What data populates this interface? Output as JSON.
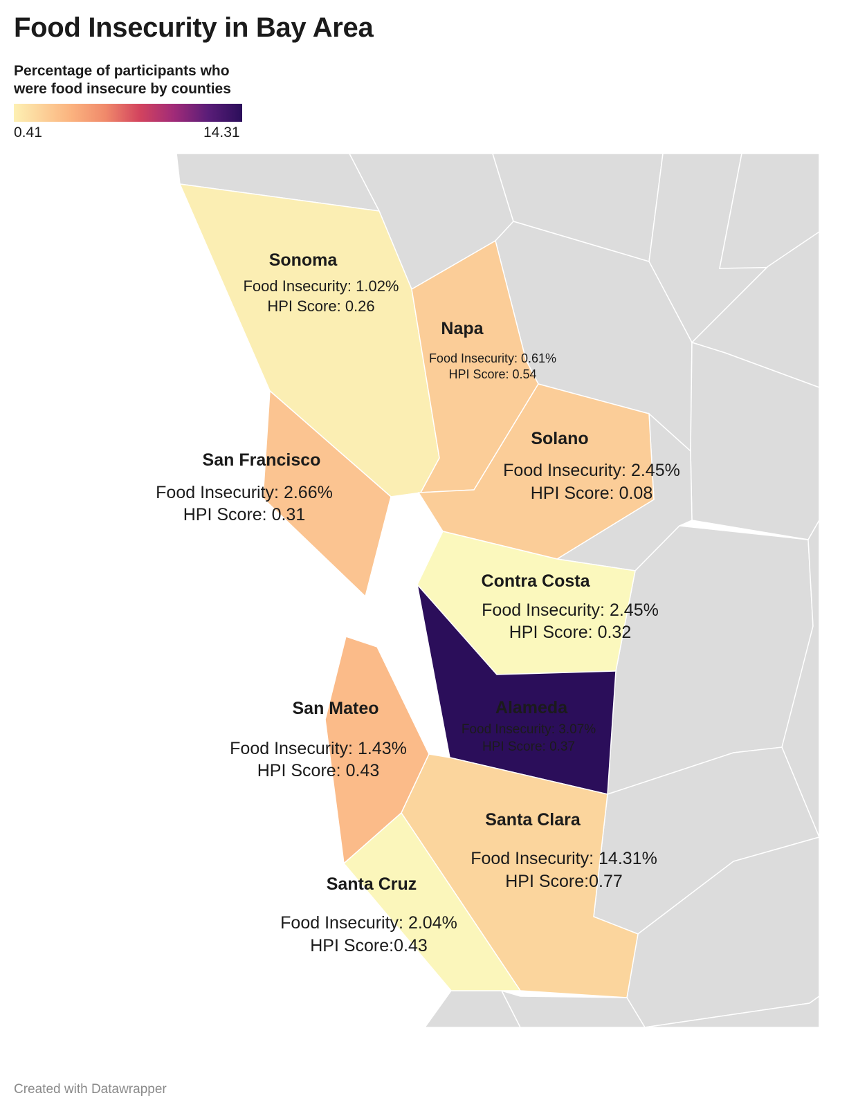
{
  "title": "Food Insecurity in Bay Area",
  "legend": {
    "title": "Percentage of participants who were food insecure by counties",
    "min_label": "0.41",
    "max_label": "14.31",
    "min": 0.41,
    "max": 14.31
  },
  "counties": [
    {
      "name": "Sonoma",
      "line1": "Food Insecurity: 1.02%",
      "line2": "HPI Score: 0.26",
      "fill": "#fbeeb3"
    },
    {
      "name": "Napa",
      "line1": "Food Insecurity: 0.61%",
      "line2": "HPI Score: 0.54",
      "fill": "#fbcd98"
    },
    {
      "name": "Solano",
      "line1": "Food Insecurity: 2.45%",
      "line2": "HPI Score: 0.08",
      "fill": "#fbcd98"
    },
    {
      "name": "San Francisco",
      "line1": "Food Insecurity: 2.66%",
      "line2": "HPI Score: 0.31",
      "fill": "#fbc491"
    },
    {
      "name": "Contra Costa",
      "line1": "Food Insecurity: 2.45%",
      "line2": "HPI Score: 0.32",
      "fill": "#fbf8bd"
    },
    {
      "name": "Alameda",
      "line1": "Food Insecurity: 3.07%",
      "line2": "HPI Score: 0.37",
      "fill": "#2b0e5a",
      "label_color": "#fbc98f"
    },
    {
      "name": "San Mateo",
      "line1": "Food Insecurity: 1.43%",
      "line2": "HPI Score: 0.43",
      "fill": "#fbbb89"
    },
    {
      "name": "Santa Clara",
      "line1": "Food Insecurity: 14.31%",
      "line2": "HPI Score:0.77",
      "fill": "#fbd59d"
    },
    {
      "name": "Santa Cruz",
      "line1": "Food Insecurity: 2.04%",
      "line2": "HPI Score:0.43",
      "fill": "#fbf6bb"
    }
  ],
  "background_fill": "#dcdcdc",
  "footer": "Created with Datawrapper"
}
